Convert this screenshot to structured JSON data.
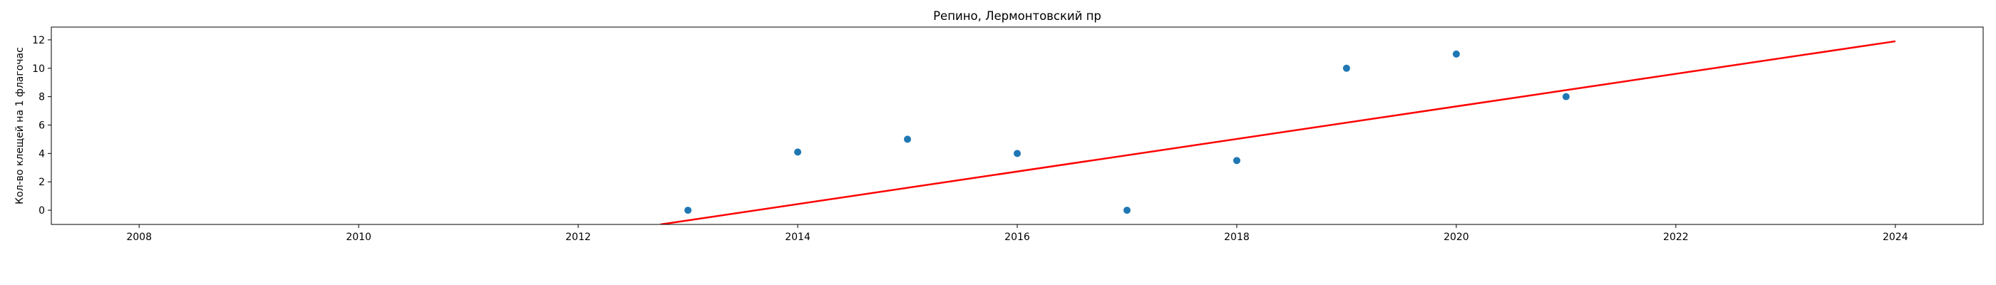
{
  "chart_data": {
    "type": "scatter",
    "title": "Репино, Лермонтовский пр",
    "xlabel": "",
    "ylabel": "Кол-во клещей на 1 флагочас",
    "xlim": [
      2007.2,
      2024.8
    ],
    "ylim": [
      -1.0,
      12.9
    ],
    "x_ticks": [
      2008,
      2010,
      2012,
      2014,
      2016,
      2018,
      2020,
      2022,
      2024
    ],
    "y_ticks": [
      0,
      2,
      4,
      6,
      8,
      10,
      12
    ],
    "grid": false,
    "series": [
      {
        "type": "scatter",
        "color": "#1f77b4",
        "points": [
          {
            "x": 2013,
            "y": 0
          },
          {
            "x": 2014,
            "y": 4.1
          },
          {
            "x": 2015,
            "y": 5
          },
          {
            "x": 2016,
            "y": 4
          },
          {
            "x": 2017,
            "y": 0
          },
          {
            "x": 2018,
            "y": 3.5
          },
          {
            "x": 2019,
            "y": 10
          },
          {
            "x": 2020,
            "y": 11
          },
          {
            "x": 2021,
            "y": 8
          }
        ]
      },
      {
        "type": "line",
        "color": "#ff0000",
        "points": [
          {
            "x": 2012.75,
            "y": -1.0
          },
          {
            "x": 2024,
            "y": 11.9
          }
        ]
      }
    ]
  }
}
